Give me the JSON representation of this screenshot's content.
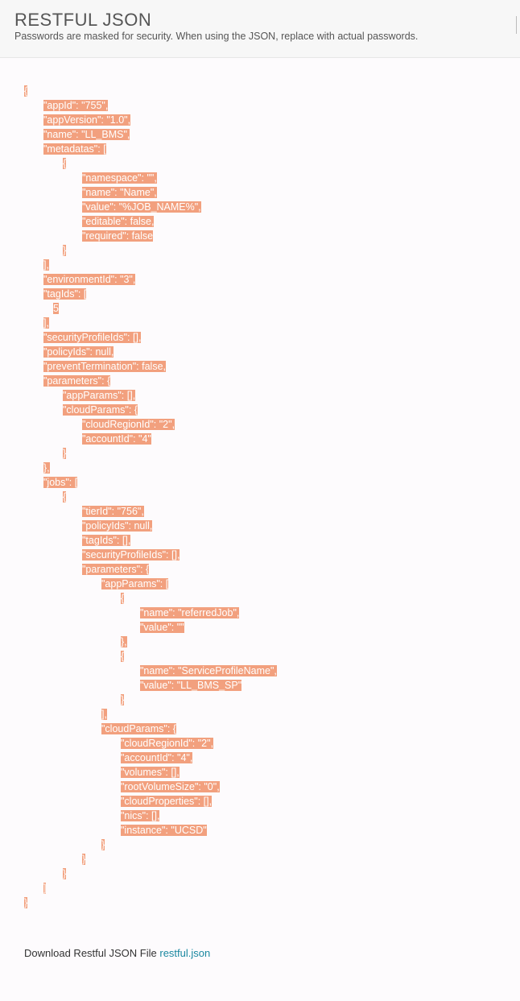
{
  "header": {
    "title": "RESTFUL JSON",
    "subtitle": "Passwords are masked for security. When using the JSON, replace with actual passwords."
  },
  "json_lines": [
    {
      "indent": 0,
      "text": "{"
    },
    {
      "indent": 1,
      "text": "\"appId\": \"755\","
    },
    {
      "indent": 1,
      "text": "\"appVersion\": \"1.0\","
    },
    {
      "indent": 1,
      "text": "\"name\": \"LL_BMS\","
    },
    {
      "indent": 1,
      "text": "\"metadatas\": ["
    },
    {
      "indent": 2,
      "text": "{"
    },
    {
      "indent": 3,
      "text": "\"namespace\": \"\","
    },
    {
      "indent": 3,
      "text": "\"name\": \"Name\","
    },
    {
      "indent": 3,
      "text": "\"value\": \"%JOB_NAME%\","
    },
    {
      "indent": 3,
      "text": "\"editable\": false,"
    },
    {
      "indent": 3,
      "text": "\"required\": false"
    },
    {
      "indent": 2,
      "text": "}"
    },
    {
      "indent": 1,
      "text": "],"
    },
    {
      "indent": 1,
      "text": "\"environmentId\": \"3\","
    },
    {
      "indent": 1,
      "text": "\"tagIds\": ["
    },
    {
      "indent": 1.5,
      "text": "5"
    },
    {
      "indent": 1,
      "text": "],"
    },
    {
      "indent": 1,
      "text": "\"securityProfileIds\": [],"
    },
    {
      "indent": 1,
      "text": "\"policyIds\": null,"
    },
    {
      "indent": 1,
      "text": "\"preventTermination\": false,"
    },
    {
      "indent": 1,
      "text": "\"parameters\": {"
    },
    {
      "indent": 2,
      "text": "\"appParams\": [],"
    },
    {
      "indent": 2,
      "text": "\"cloudParams\": {"
    },
    {
      "indent": 3,
      "text": "\"cloudRegionId\": \"2\","
    },
    {
      "indent": 3,
      "text": "\"accountId\": \"4\""
    },
    {
      "indent": 2,
      "text": "}"
    },
    {
      "indent": 1,
      "text": "},"
    },
    {
      "indent": 1,
      "text": "\"jobs\": ["
    },
    {
      "indent": 2,
      "text": "{"
    },
    {
      "indent": 3,
      "text": "\"tierId\": \"756\","
    },
    {
      "indent": 3,
      "text": "\"policyIds\": null,"
    },
    {
      "indent": 3,
      "text": "\"tagIds\": [],"
    },
    {
      "indent": 3,
      "text": "\"securityProfileIds\": [],"
    },
    {
      "indent": 3,
      "text": "\"parameters\": {"
    },
    {
      "indent": 4,
      "text": "\"appParams\": ["
    },
    {
      "indent": 5,
      "text": "{"
    },
    {
      "indent": 6,
      "text": "\"name\": \"referredJob\","
    },
    {
      "indent": 6,
      "text": "\"value\": \"\""
    },
    {
      "indent": 5,
      "text": "},"
    },
    {
      "indent": 5,
      "text": "{"
    },
    {
      "indent": 6,
      "text": "\"name\": \"ServiceProfileName\","
    },
    {
      "indent": 6,
      "text": "\"value\": \"LL_BMS_SP\""
    },
    {
      "indent": 5,
      "text": "}"
    },
    {
      "indent": 4,
      "text": "],"
    },
    {
      "indent": 4,
      "text": "\"cloudParams\": {"
    },
    {
      "indent": 5,
      "text": "\"cloudRegionId\": \"2\","
    },
    {
      "indent": 5,
      "text": "\"accountId\": \"4\","
    },
    {
      "indent": 5,
      "text": "\"volumes\": [],"
    },
    {
      "indent": 5,
      "text": "\"rootVolumeSize\": \"0\","
    },
    {
      "indent": 5,
      "text": "\"cloudProperties\": [],"
    },
    {
      "indent": 5,
      "text": "\"nics\": [],"
    },
    {
      "indent": 5,
      "text": "\"instance\": \"UCSD\""
    },
    {
      "indent": 4,
      "text": "}"
    },
    {
      "indent": 3,
      "text": "}"
    },
    {
      "indent": 2,
      "text": "}"
    },
    {
      "indent": 1,
      "text": "]"
    },
    {
      "indent": 0,
      "text": "}"
    }
  ],
  "download": {
    "label": "Download Restful JSON File",
    "link_text": "restful.json"
  },
  "colors": {
    "selection": "#f2a07e",
    "link": "#1a88a0"
  }
}
